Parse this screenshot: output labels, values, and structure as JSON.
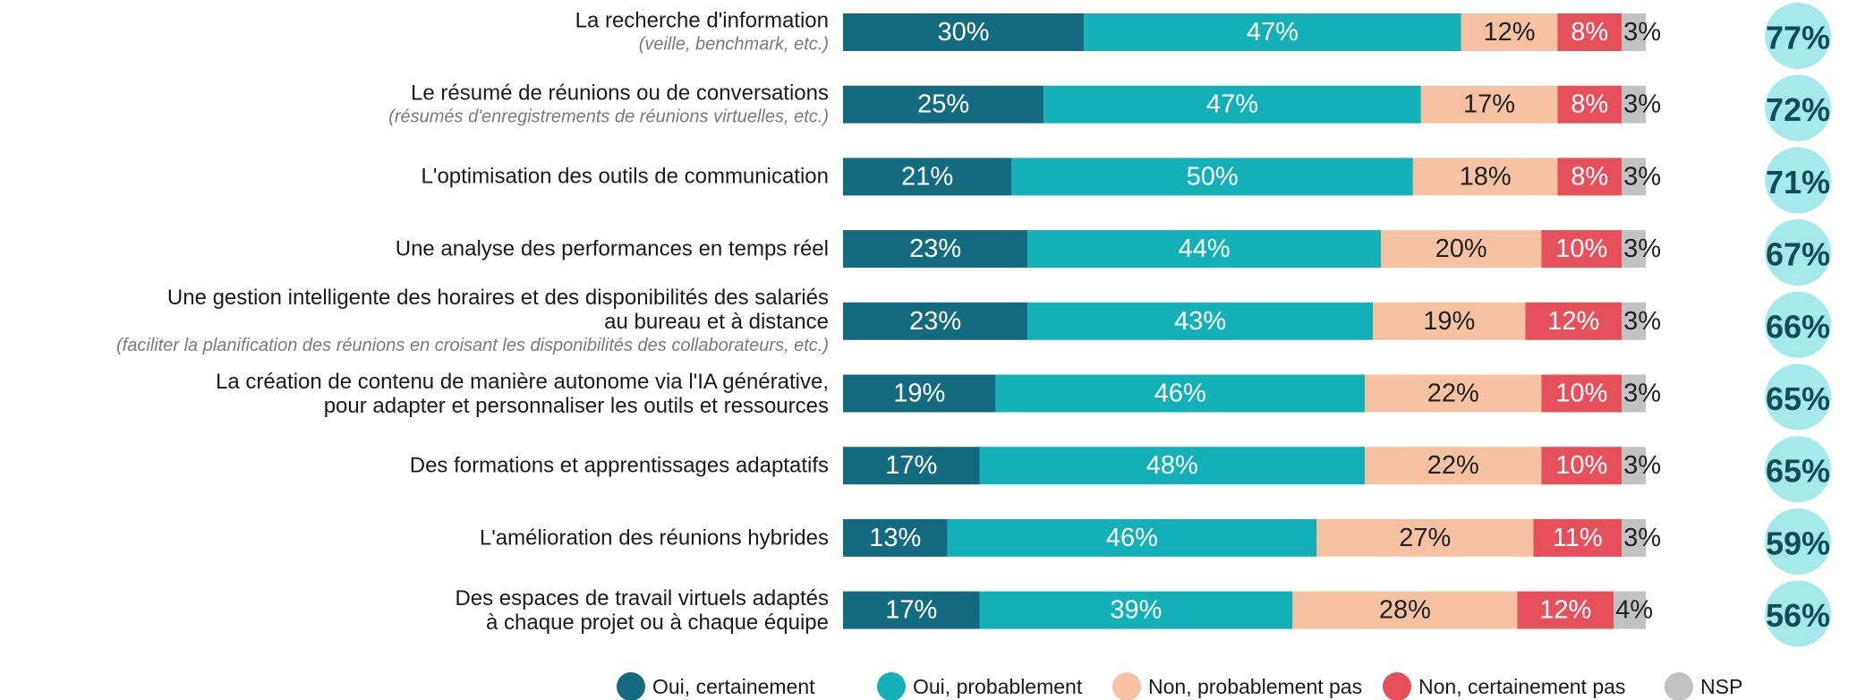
{
  "chart_data": {
    "type": "stacked_barh",
    "categories": [
      "La recherche d'information",
      "Le résumé de réunions ou de conversations",
      "L'optimisation des outils de communication",
      "Une analyse des performances en temps réel",
      "Une gestion intelligente des horaires et des disponibilités des salariés\nau bureau et à distance",
      "La création de contenu de manière autonome via l'IA générative,\npour adapter et personnaliser les outils et ressources",
      "Des formations et apprentissages adaptatifs",
      "L'amélioration des réunions hybrides",
      "Des espaces de travail virtuels adaptés\nà chaque projet ou à chaque équipe"
    ],
    "category_notes": [
      "(veille, benchmark, etc.)",
      "(résumés d'enregistrements de réunions virtuelles, etc.)",
      null,
      null,
      "(faciliter la planification des réunions en croisant les disponibilités des collaborateurs, etc.)",
      null,
      null,
      null,
      null
    ],
    "series": [
      {
        "name": "Oui, certainement",
        "color": "#146b80",
        "label_color": "#ffffff",
        "values": [
          30,
          25,
          21,
          23,
          23,
          19,
          17,
          13,
          17
        ],
        "value_labels": [
          "30%",
          "25%",
          "21%",
          "23%",
          "23%",
          "19%",
          "17%",
          "13%",
          "17%"
        ]
      },
      {
        "name": "Oui, probablement",
        "color": "#14b0b8",
        "label_color": "#ffffff",
        "values": [
          47,
          47,
          50,
          44,
          43,
          46,
          48,
          46,
          39
        ],
        "value_labels": [
          "47%",
          "47%",
          "50%",
          "44%",
          "43%",
          "46%",
          "48%",
          "46%",
          "39%"
        ]
      },
      {
        "name": "Non, probablement pas",
        "color": "#f7c2a2",
        "label_color": "#222222",
        "values": [
          12,
          17,
          18,
          20,
          19,
          22,
          22,
          27,
          28
        ],
        "value_labels": [
          "12%",
          "17%",
          "18%",
          "20%",
          "19%",
          "22%",
          "22%",
          "27%",
          "28%"
        ]
      },
      {
        "name": "Non, certainement pas",
        "color": "#e5505a",
        "label_color": "#ffffff",
        "values": [
          8,
          8,
          8,
          10,
          12,
          10,
          10,
          11,
          12
        ],
        "value_labels": [
          "8%",
          "8%",
          "8%",
          "10%",
          "12%",
          "10%",
          "10%",
          "11%",
          "12%"
        ]
      },
      {
        "name": "NSP",
        "color": "#c2c2c2",
        "label_color": "#222222",
        "values": [
          3,
          3,
          3,
          3,
          3,
          3,
          3,
          3,
          4
        ],
        "value_labels": [
          "3%",
          "3%",
          "3%",
          "3%",
          "3%",
          "3%",
          "3%",
          "3%",
          "4%"
        ]
      }
    ],
    "totals": {
      "color": "#a6e9eb",
      "label_color": "#0f4d5a",
      "values": [
        77,
        72,
        71,
        67,
        66,
        65,
        65,
        59,
        56
      ],
      "value_labels": [
        "77%",
        "72%",
        "71%",
        "67%",
        "66%",
        "65%",
        "65%",
        "59%",
        "56%"
      ]
    },
    "xlim": [
      0,
      100
    ]
  }
}
